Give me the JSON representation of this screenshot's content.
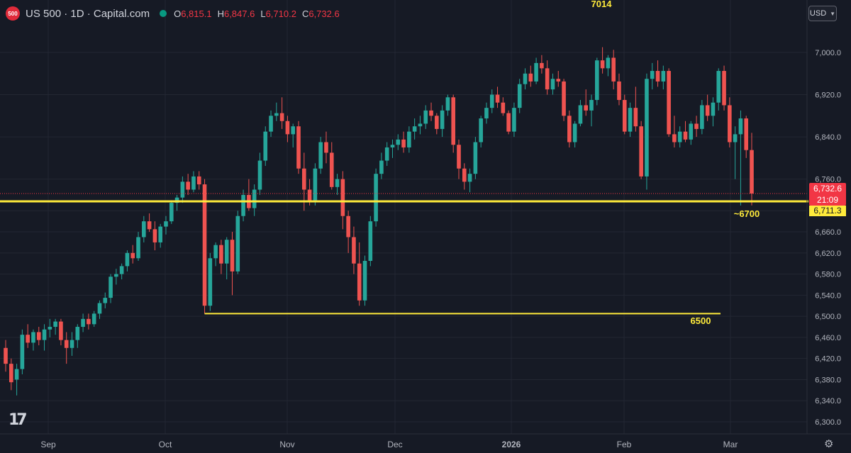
{
  "header": {
    "logo_text": "500",
    "title": "US 500 · 1D · Capital.com",
    "open_key": "O",
    "open_val": "6,815.1",
    "high_key": "H",
    "high_val": "6,847.6",
    "low_key": "L",
    "low_val": "6,710.2",
    "close_key": "C",
    "close_val": "6,732.6"
  },
  "currency": "USD",
  "price_tag": {
    "price": "6,732.6",
    "countdown": "21:09"
  },
  "level_tag": "6,711.3",
  "annotations": {
    "top": "7014",
    "support": "~6700",
    "low": "6500"
  },
  "colors": {
    "up": "#26a69a",
    "down": "#ef5350",
    "level": "#ffeb3b",
    "background": "#161a25",
    "grid": "#232733"
  },
  "chart_data": {
    "type": "candlestick",
    "y_ticks": [
      "7,000.0",
      "6,920.0",
      "6,840.0",
      "6,760.0",
      "6,700.0",
      "6,660.0",
      "6,620.0",
      "6,580.0",
      "6,540.0",
      "6,500.0",
      "6,460.0",
      "6,420.0",
      "6,380.0",
      "6,340.0",
      "6,300.0"
    ],
    "ylim": [
      6280,
      7040
    ],
    "x_labels": [
      "Sep",
      "Oct",
      "Nov",
      "Dec",
      "2026",
      "Feb",
      "Mar"
    ],
    "horizontal_levels": [
      {
        "label": "~6700",
        "value": 6700
      },
      {
        "label": "6500",
        "value": 6505
      }
    ],
    "candles": [
      [
        6440,
        6455,
        6395,
        6410
      ],
      [
        6410,
        6420,
        6360,
        6375
      ],
      [
        6380,
        6410,
        6350,
        6400
      ],
      [
        6400,
        6475,
        6390,
        6465
      ],
      [
        6465,
        6485,
        6440,
        6450
      ],
      [
        6450,
        6475,
        6435,
        6470
      ],
      [
        6470,
        6480,
        6445,
        6455
      ],
      [
        6455,
        6485,
        6435,
        6475
      ],
      [
        6475,
        6495,
        6460,
        6480
      ],
      [
        6480,
        6495,
        6465,
        6490
      ],
      [
        6490,
        6495,
        6445,
        6455
      ],
      [
        6455,
        6470,
        6410,
        6440
      ],
      [
        6440,
        6470,
        6425,
        6455
      ],
      [
        6455,
        6485,
        6440,
        6480
      ],
      [
        6480,
        6505,
        6470,
        6495
      ],
      [
        6495,
        6505,
        6475,
        6485
      ],
      [
        6485,
        6510,
        6480,
        6505
      ],
      [
        6505,
        6530,
        6495,
        6525
      ],
      [
        6525,
        6545,
        6515,
        6535
      ],
      [
        6535,
        6580,
        6525,
        6575
      ],
      [
        6575,
        6590,
        6560,
        6580
      ],
      [
        6580,
        6600,
        6570,
        6595
      ],
      [
        6595,
        6625,
        6585,
        6620
      ],
      [
        6620,
        6635,
        6600,
        6610
      ],
      [
        6610,
        6660,
        6605,
        6650
      ],
      [
        6650,
        6690,
        6640,
        6680
      ],
      [
        6680,
        6695,
        6660,
        6665
      ],
      [
        6665,
        6680,
        6625,
        6640
      ],
      [
        6640,
        6675,
        6630,
        6670
      ],
      [
        6670,
        6690,
        6655,
        6680
      ],
      [
        6680,
        6720,
        6675,
        6715
      ],
      [
        6715,
        6730,
        6700,
        6725
      ],
      [
        6725,
        6765,
        6715,
        6755
      ],
      [
        6755,
        6770,
        6730,
        6740
      ],
      [
        6740,
        6775,
        6735,
        6765
      ],
      [
        6765,
        6775,
        6740,
        6750
      ],
      [
        6750,
        6760,
        6505,
        6520
      ],
      [
        6520,
        6620,
        6510,
        6610
      ],
      [
        6610,
        6640,
        6595,
        6635
      ],
      [
        6635,
        6645,
        6580,
        6600
      ],
      [
        6600,
        6650,
        6570,
        6645
      ],
      [
        6645,
        6660,
        6540,
        6585
      ],
      [
        6585,
        6700,
        6580,
        6690
      ],
      [
        6690,
        6740,
        6680,
        6730
      ],
      [
        6730,
        6760,
        6700,
        6705
      ],
      [
        6705,
        6750,
        6690,
        6740
      ],
      [
        6740,
        6810,
        6730,
        6795
      ],
      [
        6795,
        6860,
        6785,
        6850
      ],
      [
        6850,
        6890,
        6840,
        6880
      ],
      [
        6880,
        6905,
        6870,
        6885
      ],
      [
        6885,
        6915,
        6855,
        6870
      ],
      [
        6870,
        6880,
        6830,
        6845
      ],
      [
        6845,
        6865,
        6820,
        6860
      ],
      [
        6860,
        6870,
        6770,
        6780
      ],
      [
        6780,
        6810,
        6700,
        6740
      ],
      [
        6740,
        6760,
        6710,
        6720
      ],
      [
        6720,
        6790,
        6710,
        6780
      ],
      [
        6780,
        6840,
        6770,
        6830
      ],
      [
        6830,
        6850,
        6790,
        6810
      ],
      [
        6810,
        6830,
        6740,
        6745
      ],
      [
        6745,
        6770,
        6730,
        6760
      ],
      [
        6760,
        6775,
        6665,
        6690
      ],
      [
        6690,
        6700,
        6620,
        6650
      ],
      [
        6650,
        6670,
        6580,
        6600
      ],
      [
        6600,
        6640,
        6520,
        6530
      ],
      [
        6530,
        6615,
        6520,
        6605
      ],
      [
        6605,
        6690,
        6595,
        6680
      ],
      [
        6680,
        6780,
        6670,
        6770
      ],
      [
        6770,
        6810,
        6760,
        6795
      ],
      [
        6795,
        6830,
        6785,
        6820
      ],
      [
        6820,
        6835,
        6800,
        6825
      ],
      [
        6825,
        6845,
        6815,
        6835
      ],
      [
        6835,
        6850,
        6810,
        6820
      ],
      [
        6820,
        6860,
        6810,
        6850
      ],
      [
        6850,
        6875,
        6835,
        6860
      ],
      [
        6860,
        6880,
        6845,
        6865
      ],
      [
        6865,
        6900,
        6855,
        6890
      ],
      [
        6890,
        6905,
        6870,
        6880
      ],
      [
        6880,
        6885,
        6845,
        6855
      ],
      [
        6855,
        6900,
        6840,
        6890
      ],
      [
        6890,
        6920,
        6880,
        6915
      ],
      [
        6915,
        6920,
        6810,
        6825
      ],
      [
        6825,
        6835,
        6760,
        6780
      ],
      [
        6780,
        6790,
        6740,
        6755
      ],
      [
        6755,
        6780,
        6735,
        6770
      ],
      [
        6770,
        6840,
        6760,
        6830
      ],
      [
        6830,
        6880,
        6820,
        6875
      ],
      [
        6875,
        6905,
        6865,
        6895
      ],
      [
        6895,
        6930,
        6885,
        6920
      ],
      [
        6920,
        6935,
        6895,
        6905
      ],
      [
        6905,
        6915,
        6880,
        6885
      ],
      [
        6885,
        6890,
        6845,
        6850
      ],
      [
        6850,
        6905,
        6840,
        6895
      ],
      [
        6895,
        6950,
        6885,
        6940
      ],
      [
        6940,
        6970,
        6930,
        6960
      ],
      [
        6960,
        6975,
        6935,
        6945
      ],
      [
        6945,
        6990,
        6940,
        6980
      ],
      [
        6980,
        6995,
        6960,
        6970
      ],
      [
        6970,
        6985,
        6920,
        6930
      ],
      [
        6930,
        6960,
        6920,
        6950
      ],
      [
        6950,
        6965,
        6935,
        6945
      ],
      [
        6945,
        6950,
        6870,
        6880
      ],
      [
        6880,
        6890,
        6820,
        6830
      ],
      [
        6830,
        6870,
        6820,
        6865
      ],
      [
        6865,
        6910,
        6860,
        6900
      ],
      [
        6900,
        6930,
        6880,
        6890
      ],
      [
        6890,
        6920,
        6860,
        6910
      ],
      [
        6910,
        6990,
        6900,
        6985
      ],
      [
        6985,
        7010,
        6960,
        6970
      ],
      [
        6970,
        6995,
        6955,
        6990
      ],
      [
        6990,
        7005,
        6930,
        6945
      ],
      [
        6945,
        6960,
        6900,
        6910
      ],
      [
        6910,
        6920,
        6845,
        6850
      ],
      [
        6850,
        6905,
        6840,
        6895
      ],
      [
        6895,
        6935,
        6850,
        6860
      ],
      [
        6860,
        6870,
        6760,
        6765
      ],
      [
        6765,
        6960,
        6740,
        6950
      ],
      [
        6950,
        6980,
        6930,
        6965
      ],
      [
        6965,
        6985,
        6935,
        6945
      ],
      [
        6945,
        6975,
        6930,
        6965
      ],
      [
        6965,
        6970,
        6840,
        6845
      ],
      [
        6845,
        6880,
        6820,
        6830
      ],
      [
        6830,
        6860,
        6820,
        6850
      ],
      [
        6850,
        6870,
        6830,
        6835
      ],
      [
        6835,
        6870,
        6825,
        6865
      ],
      [
        6865,
        6880,
        6840,
        6855
      ],
      [
        6855,
        6910,
        6845,
        6900
      ],
      [
        6900,
        6920,
        6870,
        6880
      ],
      [
        6880,
        6915,
        6860,
        6905
      ],
      [
        6905,
        6970,
        6890,
        6965
      ],
      [
        6965,
        6975,
        6890,
        6900
      ],
      [
        6900,
        6915,
        6820,
        6830
      ],
      [
        6830,
        6860,
        6760,
        6845
      ],
      [
        6845,
        6890,
        6710,
        6875
      ],
      [
        6875,
        6880,
        6800,
        6815
      ],
      [
        6815,
        6847.6,
        6710.2,
        6732.6
      ]
    ]
  }
}
